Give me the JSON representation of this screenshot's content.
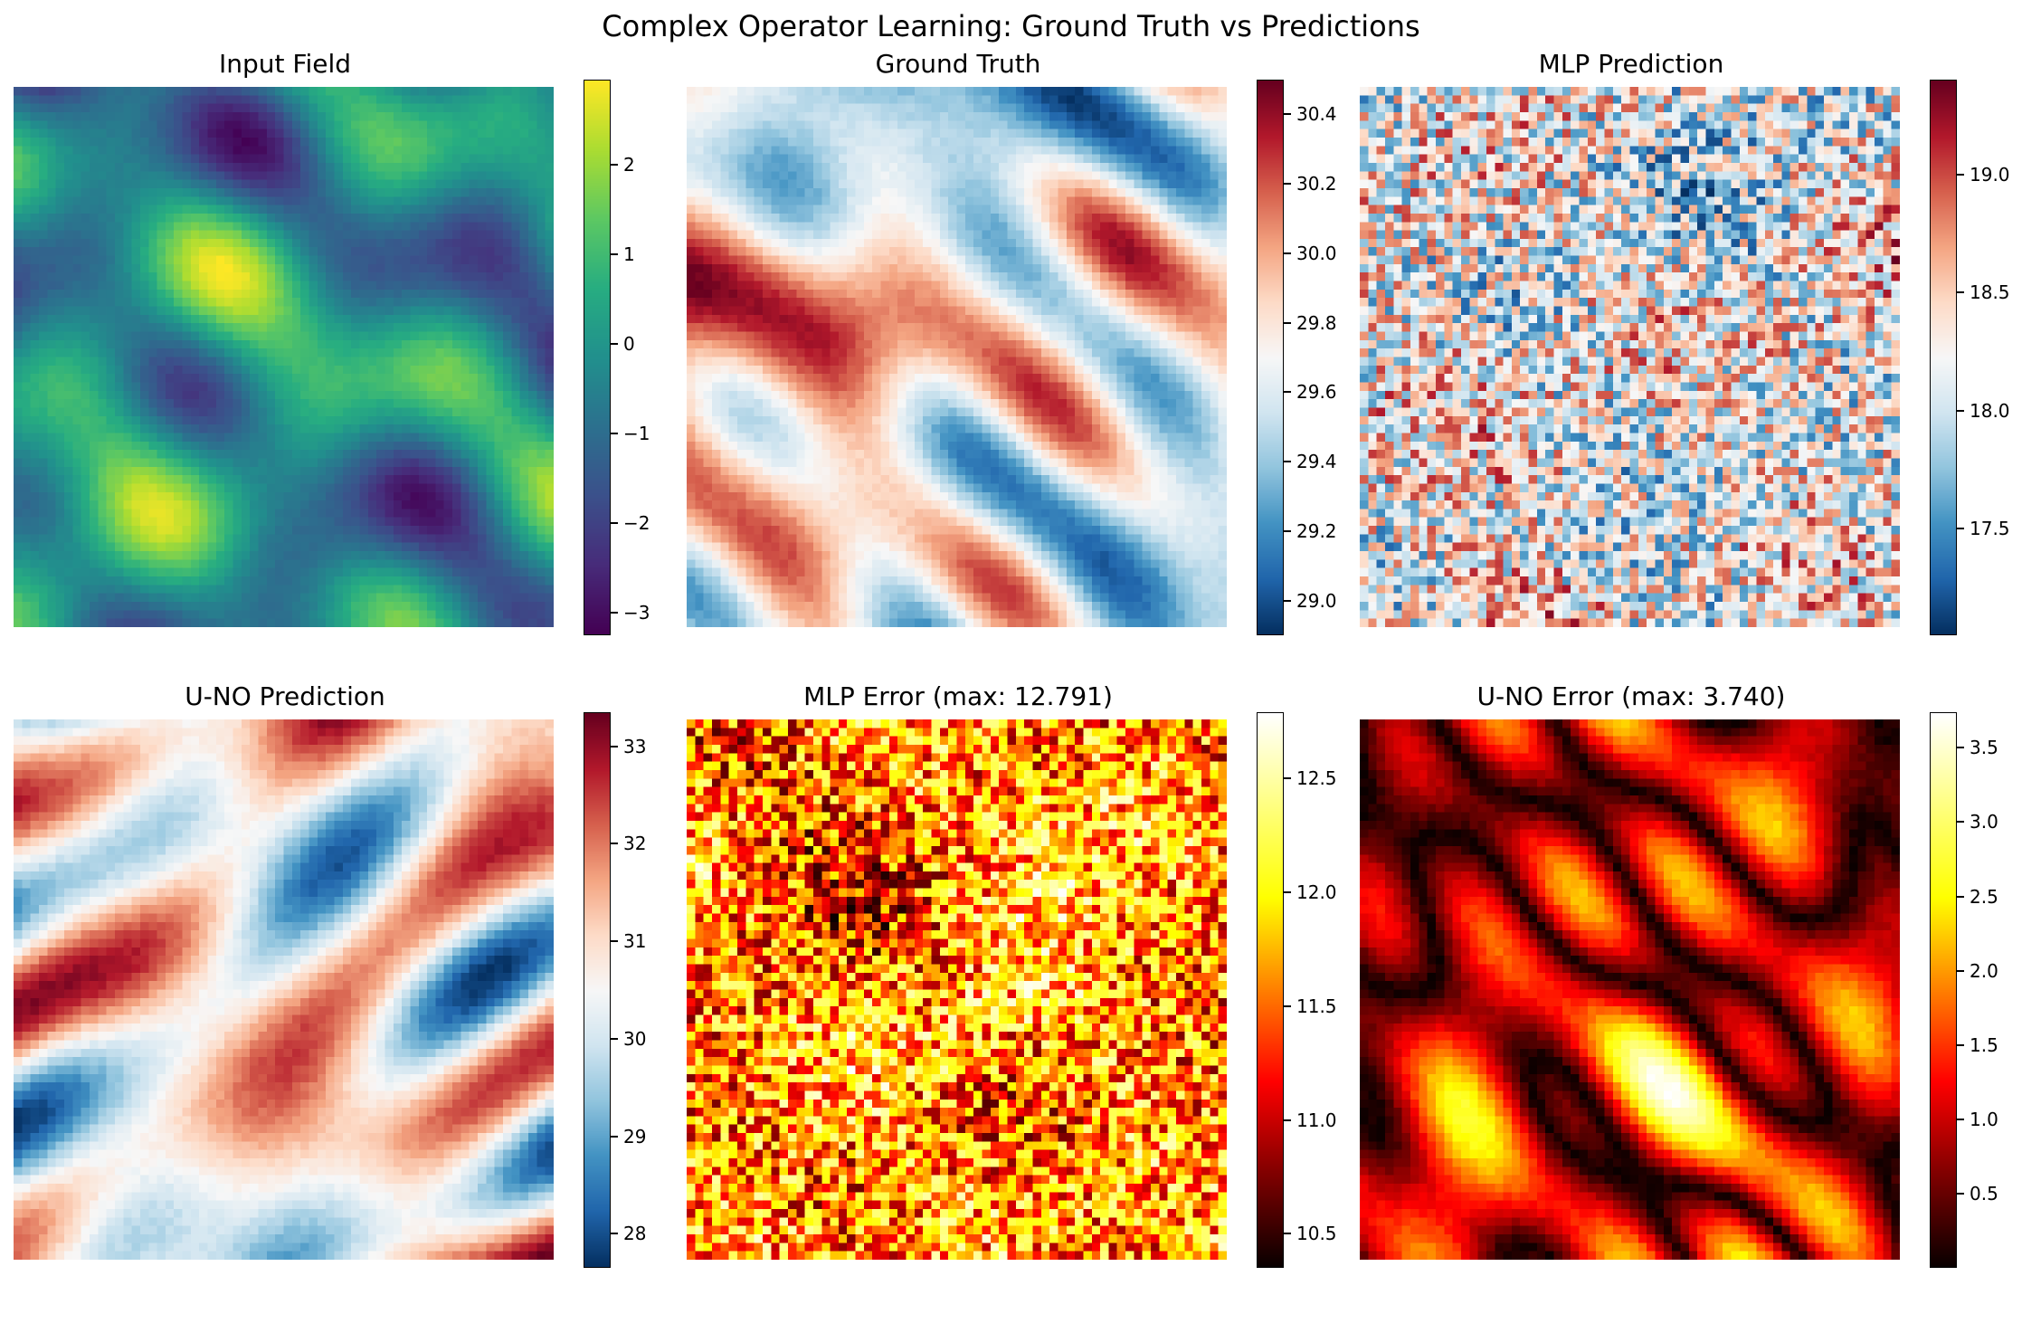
{
  "figure": {
    "suptitle": "Complex Operator Learning: Ground Truth vs Predictions"
  },
  "chart_data": [
    {
      "type": "heatmap",
      "title": "Input Field",
      "colormap": "viridis",
      "grid_size": 64,
      "pattern": "smooth",
      "vmin": -3.25,
      "vmax": 2.95,
      "colorbar_ticks": [
        -3,
        -2,
        -1,
        0,
        1,
        2
      ],
      "colorbar_labels": [
        "−3",
        "−2",
        "−1",
        "0",
        "1",
        "2"
      ]
    },
    {
      "type": "heatmap",
      "title": "Ground Truth",
      "colormap": "RdBu_r",
      "grid_size": 64,
      "pattern": "smooth",
      "vmin": 28.9,
      "vmax": 30.5,
      "colorbar_ticks": [
        29.0,
        29.2,
        29.4,
        29.6,
        29.8,
        30.0,
        30.2,
        30.4
      ],
      "colorbar_labels": [
        "29.0",
        "29.2",
        "29.4",
        "29.6",
        "29.8",
        "30.0",
        "30.2",
        "30.4"
      ]
    },
    {
      "type": "heatmap",
      "title": "MLP Prediction",
      "colormap": "RdBu_r",
      "grid_size": 64,
      "pattern": "noise",
      "vmin": 17.05,
      "vmax": 19.4,
      "colorbar_ticks": [
        17.5,
        18.0,
        18.5,
        19.0
      ],
      "colorbar_labels": [
        "17.5",
        "18.0",
        "18.5",
        "19.0"
      ]
    },
    {
      "type": "heatmap",
      "title": "U-NO Prediction",
      "colormap": "RdBu_r",
      "grid_size": 64,
      "pattern": "smooth",
      "vmin": 27.65,
      "vmax": 33.35,
      "colorbar_ticks": [
        28,
        29,
        30,
        31,
        32,
        33
      ],
      "colorbar_labels": [
        "28",
        "29",
        "30",
        "31",
        "32",
        "33"
      ]
    },
    {
      "type": "heatmap",
      "title": "MLP Error (max: 12.791)",
      "colormap": "hot",
      "grid_size": 64,
      "pattern": "noise",
      "vmin": 10.35,
      "vmax": 12.791,
      "colorbar_ticks": [
        10.5,
        11.0,
        11.5,
        12.0,
        12.5
      ],
      "colorbar_labels": [
        "10.5",
        "11.0",
        "11.5",
        "12.0",
        "12.5"
      ]
    },
    {
      "type": "heatmap",
      "title": "U-NO Error (max: 3.740)",
      "colormap": "hot",
      "grid_size": 64,
      "pattern": "abs-smooth",
      "vmin": 0.0,
      "vmax": 3.74,
      "colorbar_ticks": [
        0.5,
        1.0,
        1.5,
        2.0,
        2.5,
        3.0,
        3.5
      ],
      "colorbar_labels": [
        "0.5",
        "1.0",
        "1.5",
        "2.0",
        "2.5",
        "3.0",
        "3.5"
      ]
    }
  ]
}
